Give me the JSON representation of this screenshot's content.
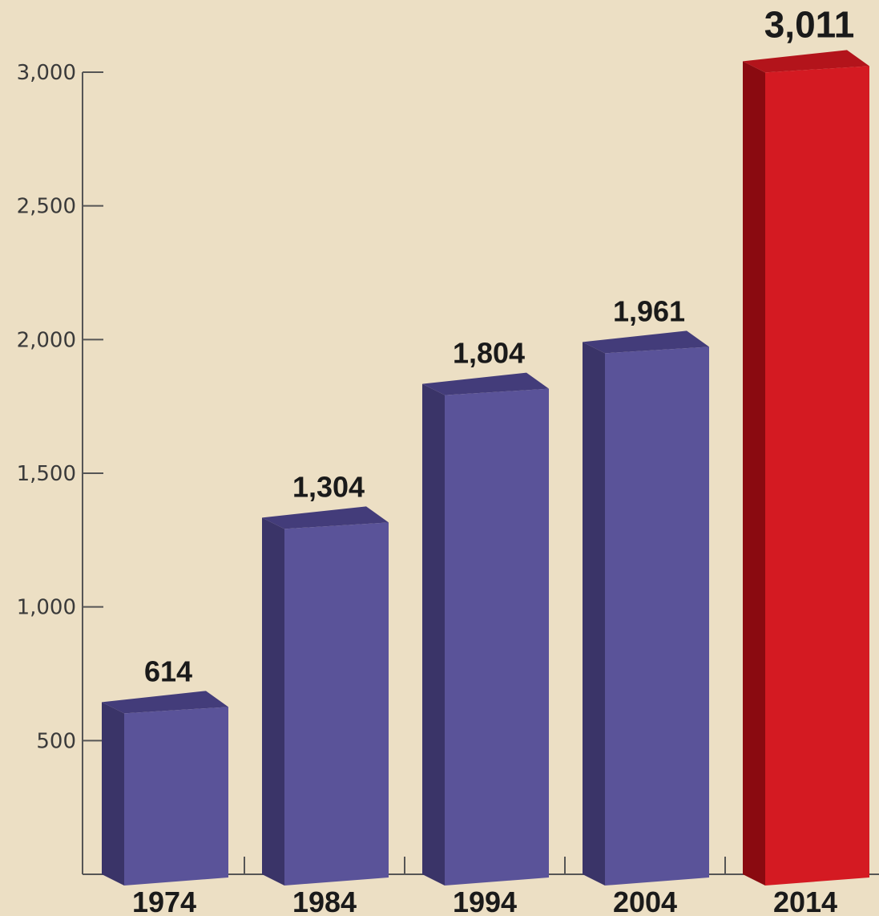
{
  "chart_data": {
    "type": "bar",
    "categories": [
      "1974",
      "1984",
      "1994",
      "2004",
      "2014"
    ],
    "values": [
      614,
      1304,
      1804,
      1961,
      3011
    ],
    "value_labels": [
      "614",
      "1,304",
      "1,804",
      "1,961",
      "3,011"
    ],
    "yticks": [
      500,
      1000,
      1500,
      2000,
      2500,
      3000
    ],
    "ytick_labels": [
      "500",
      "1,000",
      "1,500",
      "2,000",
      "2,500",
      "3,000"
    ],
    "ylim": [
      0,
      3000
    ],
    "title": "",
    "xlabel": "",
    "ylabel": "",
    "grid": false,
    "colors": {
      "default_front": "#5a5399",
      "default_side": "#3a3468",
      "default_top": "#433c7a",
      "highlight_front": "#d41a22",
      "highlight_side": "#8a0a10",
      "highlight_top": "#b3141b",
      "background": "#ecdfc4",
      "axis": "#555555"
    },
    "highlight_index": 4
  }
}
